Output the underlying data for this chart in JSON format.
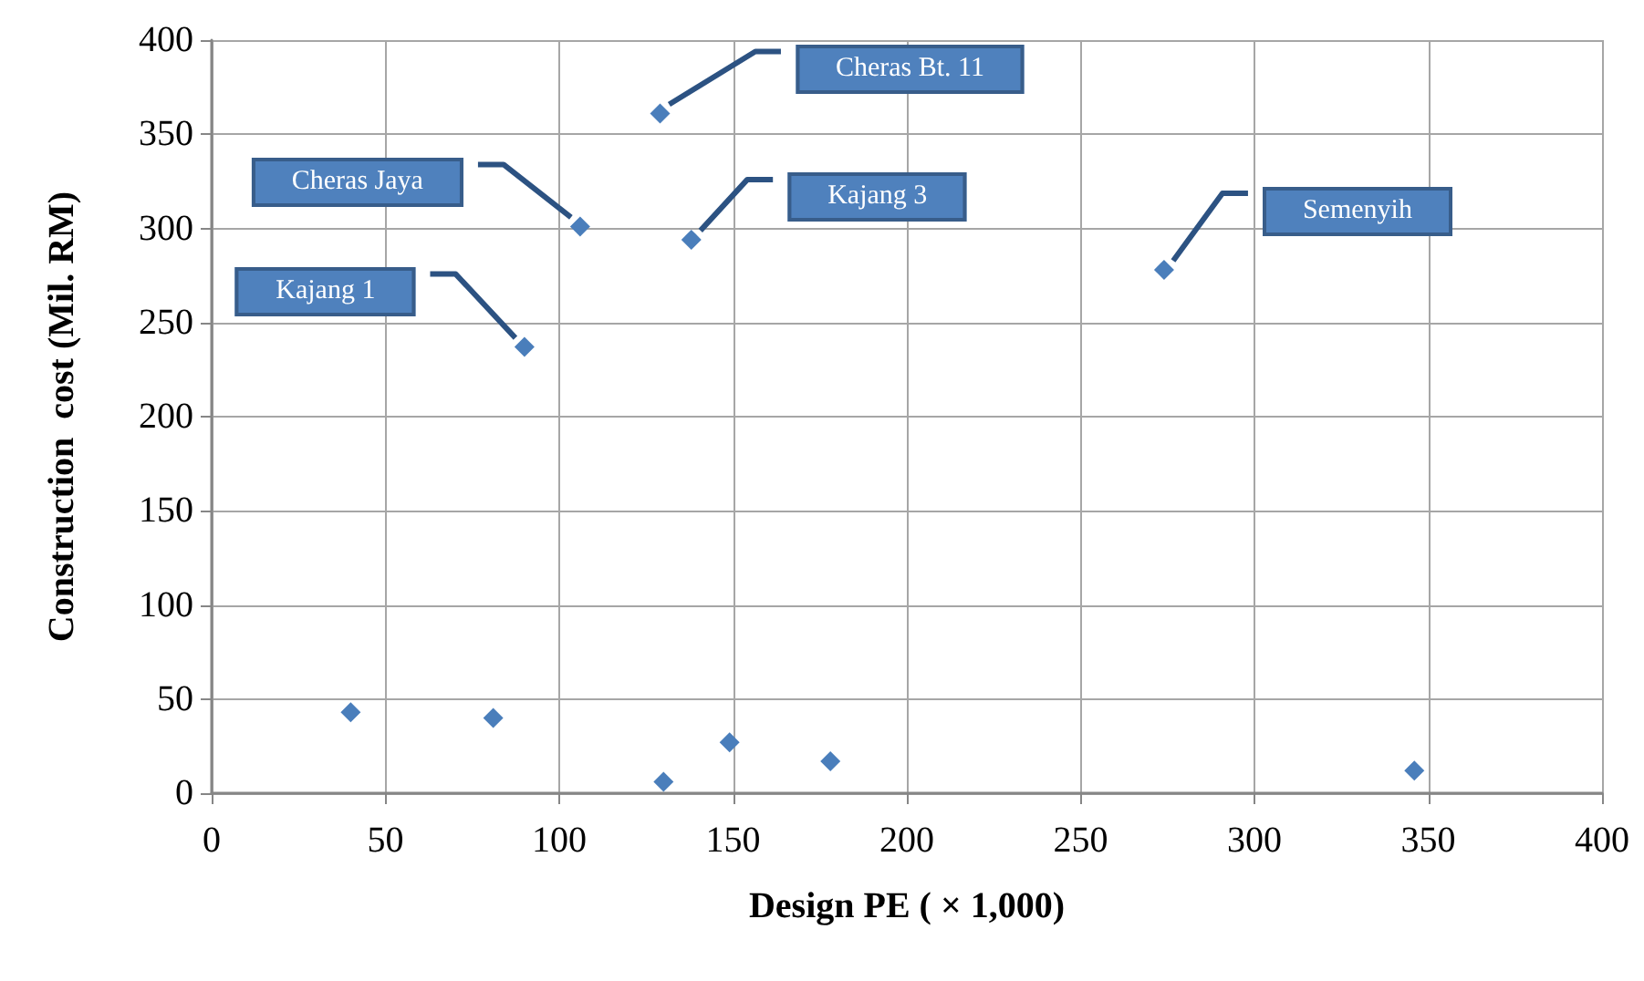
{
  "chart_data": {
    "type": "scatter",
    "xlabel": "Design PE ( × 1,000)",
    "ylabel": "Construction  cost (Mil. RM)",
    "x": [
      40,
      81,
      90,
      106,
      129,
      130,
      138,
      149,
      178,
      274,
      346
    ],
    "values": [
      43,
      40,
      237,
      301,
      361,
      6,
      294,
      27,
      17,
      278,
      12
    ],
    "color": "#4a7ebb",
    "marker": "diamond",
    "xlim": [
      0,
      400
    ],
    "xticks": [
      0,
      50,
      100,
      150,
      200,
      250,
      300,
      350,
      400
    ],
    "ylim": [
      0,
      400
    ],
    "yticks": [
      0,
      50,
      100,
      150,
      200,
      250,
      300,
      350,
      400
    ],
    "grid": true,
    "annotations": [
      "Cheras Bt. 11",
      "Cheras Jaya",
      "Kajang 3",
      "Kajang 1",
      "Semenyih"
    ]
  }
}
